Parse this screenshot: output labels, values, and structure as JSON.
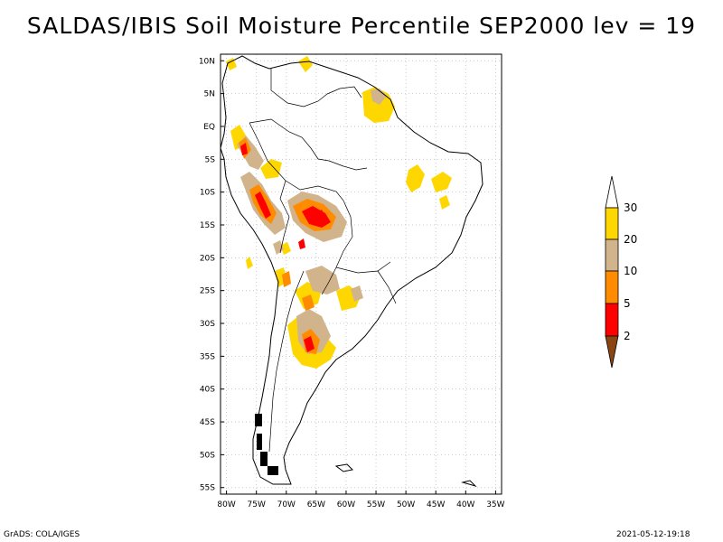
{
  "title": "SALDAS/IBIS Soil Moisture Percentile SEP2000 lev = 19",
  "footer": {
    "left": "GrADS: COLA/IGES",
    "right": "2021-05-12-19:18"
  },
  "map": {
    "region": "South America",
    "lat_labels": [
      "10N",
      "5N",
      "EQ",
      "5S",
      "10S",
      "15S",
      "20S",
      "25S",
      "30S",
      "35S",
      "40S",
      "45S",
      "50S",
      "55S"
    ],
    "lon_labels": [
      "80W",
      "75W",
      "70W",
      "65W",
      "60W",
      "55W",
      "50W",
      "45W",
      "40W",
      "35W"
    ],
    "lat_range": [
      -56,
      11
    ],
    "lon_range": [
      -81,
      -34
    ],
    "grid": "dotted"
  },
  "colorbar": {
    "labels": [
      "2",
      "5",
      "10",
      "20",
      "30"
    ],
    "colors": {
      "below_2": "#8b4513",
      "2_5": "#ff0000",
      "5_10": "#ff8c00",
      "10_20": "#d2b48c",
      "20_30": "#ffd700",
      "above_30": "#ffffff"
    }
  }
}
